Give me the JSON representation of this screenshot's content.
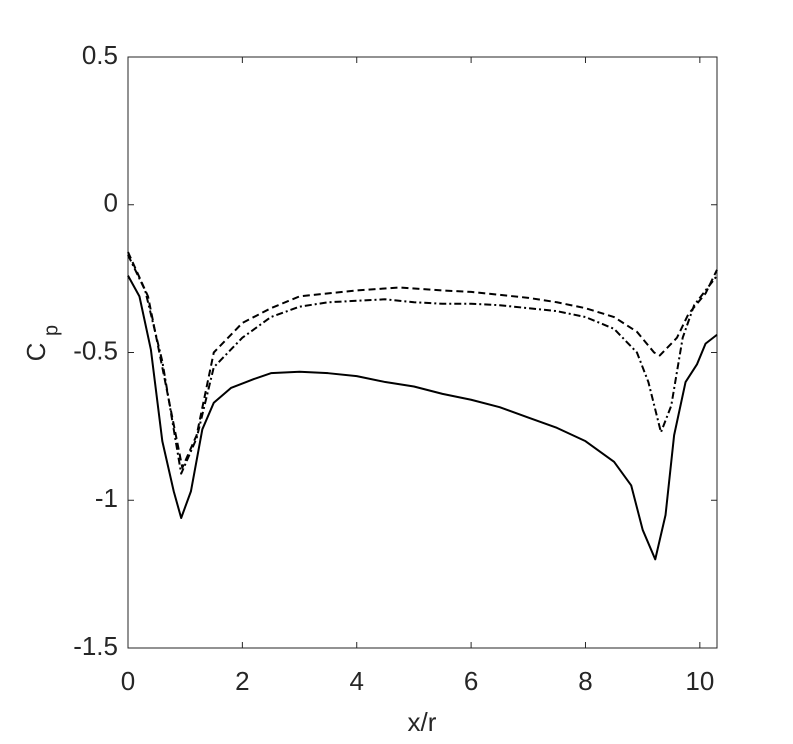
{
  "chart_data": {
    "type": "line",
    "xlabel": "x/r",
    "ylabel": {
      "main": "C",
      "sub": "p"
    },
    "xlim": [
      0,
      10.3
    ],
    "ylim": [
      -1.5,
      0.5
    ],
    "xticks": [
      0,
      2,
      4,
      6,
      8,
      10
    ],
    "yticks": [
      -1.5,
      -1,
      -0.5,
      0,
      0.5
    ],
    "grid": false,
    "series": [
      {
        "color": "#000000",
        "dash": "solid",
        "x": [
          0,
          0.2,
          0.4,
          0.6,
          0.8,
          0.93,
          1.1,
          1.3,
          1.5,
          1.8,
          2.2,
          2.5,
          3.0,
          3.5,
          4.0,
          4.5,
          5.0,
          5.5,
          6.0,
          6.5,
          7.0,
          7.5,
          8.0,
          8.5,
          8.8,
          9.0,
          9.22,
          9.4,
          9.55,
          9.75,
          9.95,
          10.1,
          10.3
        ],
        "values": [
          -0.24,
          -0.31,
          -0.49,
          -0.8,
          -0.97,
          -1.06,
          -0.97,
          -0.76,
          -0.67,
          -0.62,
          -0.59,
          -0.57,
          -0.565,
          -0.57,
          -0.58,
          -0.6,
          -0.615,
          -0.64,
          -0.66,
          -0.685,
          -0.72,
          -0.755,
          -0.8,
          -0.87,
          -0.95,
          -1.1,
          -1.2,
          -1.05,
          -0.78,
          -0.6,
          -0.54,
          -0.47,
          -0.44
        ]
      },
      {
        "color": "#000000",
        "dash": "dashed",
        "x": [
          0,
          0.35,
          0.6,
          0.95,
          1.2,
          1.5,
          2,
          2.5,
          3,
          3.5,
          4,
          4.75,
          5.5,
          6,
          6.5,
          7,
          7.5,
          8,
          8.5,
          8.9,
          9.2,
          9.3,
          9.6,
          9.8,
          10.1,
          10.3
        ],
        "values": [
          -0.16,
          -0.31,
          -0.55,
          -0.89,
          -0.78,
          -0.5,
          -0.4,
          -0.35,
          -0.31,
          -0.3,
          -0.29,
          -0.28,
          -0.29,
          -0.295,
          -0.305,
          -0.315,
          -0.33,
          -0.35,
          -0.38,
          -0.43,
          -0.5,
          -0.51,
          -0.45,
          -0.37,
          -0.3,
          -0.22
        ]
      },
      {
        "color": "#000000",
        "dash": "dashdot",
        "x": [
          0,
          0.3,
          0.6,
          0.93,
          1.2,
          1.5,
          2,
          2.5,
          3,
          3.5,
          4,
          4.5,
          5,
          5.5,
          6,
          6.5,
          7,
          7.5,
          8,
          8.5,
          8.9,
          9.1,
          9.32,
          9.5,
          9.7,
          9.9,
          10.3
        ],
        "values": [
          -0.17,
          -0.29,
          -0.53,
          -0.91,
          -0.79,
          -0.55,
          -0.45,
          -0.38,
          -0.345,
          -0.33,
          -0.325,
          -0.32,
          -0.33,
          -0.335,
          -0.335,
          -0.34,
          -0.35,
          -0.36,
          -0.38,
          -0.42,
          -0.5,
          -0.6,
          -0.77,
          -0.68,
          -0.45,
          -0.34,
          -0.24
        ]
      }
    ]
  }
}
